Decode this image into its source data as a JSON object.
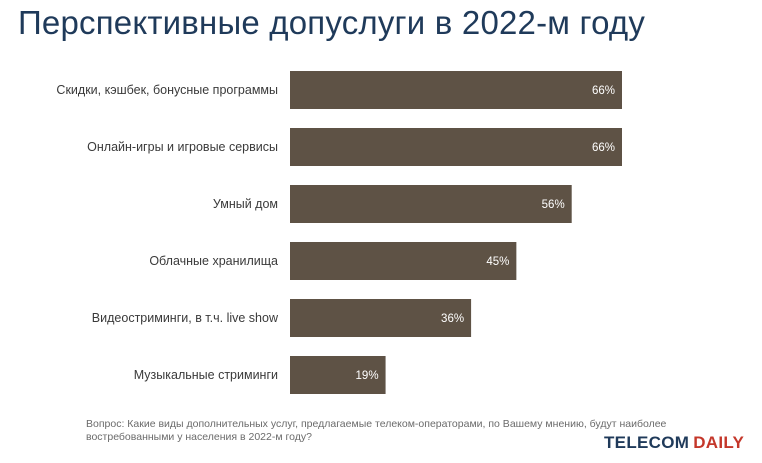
{
  "page": {
    "title": "Перспективные допуслуги в 2022-м году",
    "footnote": "Вопрос: Какие виды дополнительных услуг, предлагаемые телеком-операторами, по Вашему мнению, будут наиболее востребованными у населения в 2022-м году?",
    "logo": {
      "part1": "TELECOM",
      "part2": "DAILY"
    }
  },
  "colors": {
    "bar": "#5e5245",
    "title": "#1f3a5a",
    "logo_accent": "#c4372a"
  },
  "chart_data": {
    "type": "bar",
    "orientation": "horizontal",
    "title": "Перспективные допуслуги в 2022-м году",
    "xlabel": "",
    "ylabel": "",
    "unit": "%",
    "grid": false,
    "xlim": [
      0,
      66
    ],
    "categories": [
      "Скидки, кэшбек, бонусные программы",
      "Онлайн-игры и игровые сервисы",
      "Умный дом",
      "Облачные хранилища",
      "Видеостриминги, в т.ч. live show",
      "Музыкальные стриминги"
    ],
    "values": [
      66,
      66,
      56,
      45,
      36,
      19
    ],
    "value_labels": [
      "66%",
      "66%",
      "56%",
      "45%",
      "36%",
      "19%"
    ]
  }
}
